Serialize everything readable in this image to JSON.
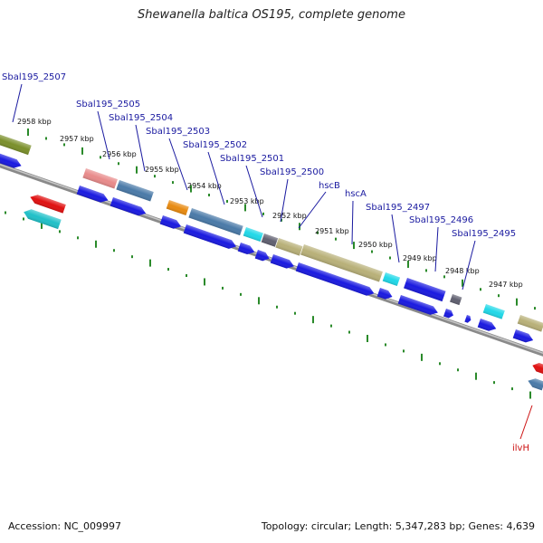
{
  "title": "Shewanella baltica OS195, complete genome",
  "footer": {
    "accession": "Accession: NC_009997",
    "summary": "Topology: circular; Length: 5,347,283 bp; Genes: 4,639"
  },
  "colors": {
    "backbone": "#8a8a8a",
    "tick": "#2a8a2a",
    "label_blue": "#1a1aa0",
    "label_red": "#cc1111",
    "cds_blue": "#1a1ae0",
    "olive": "#7a8f2a",
    "salmon": "#e88a8a",
    "steel": "#4a7aa8",
    "orange": "#e88a10",
    "cyan": "#20d8e8",
    "grey": "#606070",
    "khaki": "#b8b078",
    "red": "#e01010",
    "teal": "#20c0c8"
  },
  "ticks": [
    {
      "kbp": "2958 kbp"
    },
    {
      "kbp": "2957 kbp"
    },
    {
      "kbp": "2956 kbp"
    },
    {
      "kbp": "2955 kbp"
    },
    {
      "kbp": "2954 kbp"
    },
    {
      "kbp": "2953 kbp"
    },
    {
      "kbp": "2952 kbp"
    },
    {
      "kbp": "2951 kbp"
    },
    {
      "kbp": "2950 kbp"
    },
    {
      "kbp": "2949 kbp"
    },
    {
      "kbp": "2948 kbp"
    },
    {
      "kbp": "2947 kbp"
    }
  ],
  "gene_labels": [
    {
      "name": "Sbal195_2507"
    },
    {
      "name": "Sbal195_2505"
    },
    {
      "name": "Sbal195_2504"
    },
    {
      "name": "Sbal195_2503"
    },
    {
      "name": "Sbal195_2502"
    },
    {
      "name": "Sbal195_2501"
    },
    {
      "name": "Sbal195_2500"
    },
    {
      "name": "hscB"
    },
    {
      "name": "hscA"
    },
    {
      "name": "Sbal195_2497"
    },
    {
      "name": "Sbal195_2496"
    },
    {
      "name": "Sbal195_2495"
    },
    {
      "name": "ilvH"
    }
  ]
}
